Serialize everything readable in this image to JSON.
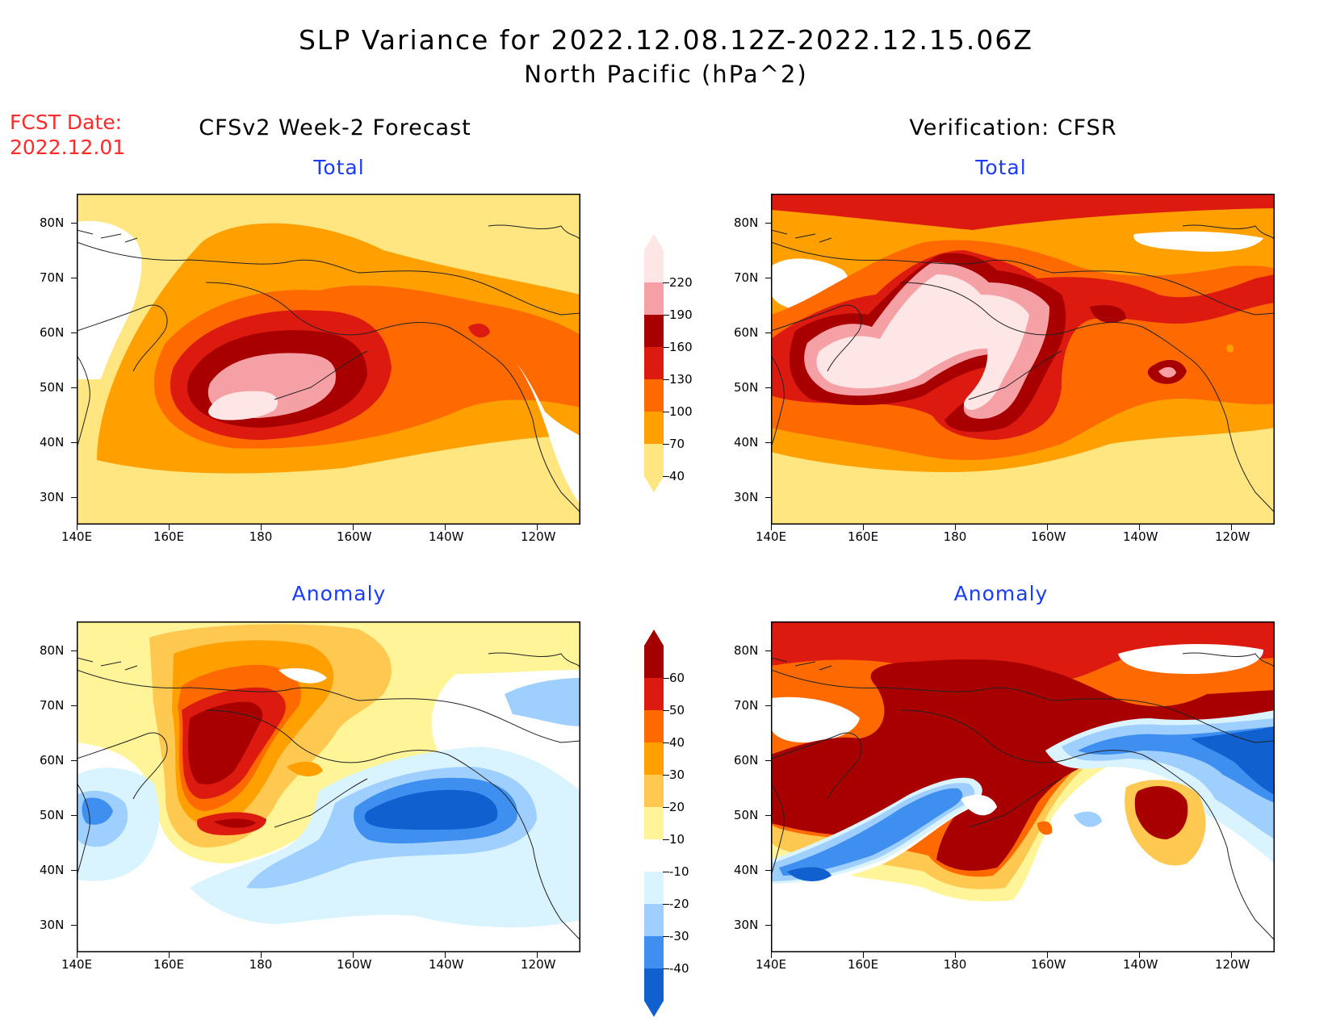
{
  "header": {
    "title_line1": "SLP Variance for 2022.12.08.12Z-2022.12.15.06Z",
    "title_line2": "North Pacific (hPa^2)"
  },
  "forecast_date": {
    "label": "FCST Date:",
    "value": "2022.12.01"
  },
  "columns": {
    "left": "CFSv2 Week-2 Forecast",
    "right": "Verification: CFSR"
  },
  "panels": {
    "top_left": "Total",
    "top_right": "Total",
    "bottom_left": "Anomaly",
    "bottom_right": "Anomaly"
  },
  "axes": {
    "lat_labels": [
      "80N",
      "70N",
      "60N",
      "50N",
      "40N",
      "30N"
    ],
    "lon_labels": [
      "140E",
      "160E",
      "180",
      "160W",
      "140W",
      "120W"
    ]
  },
  "colorbars": {
    "total": {
      "levels": [
        "220",
        "190",
        "160",
        "130",
        "100",
        "70",
        "40"
      ],
      "colors": [
        "#ffe6e6",
        "#f5a0a5",
        "#a80000",
        "#dd1a10",
        "#ff6a00",
        "#ffa000",
        "#ffe680"
      ]
    },
    "anomaly": {
      "levels": [
        "60",
        "50",
        "40",
        "30",
        "20",
        "10",
        "-10",
        "-20",
        "-30",
        "-40"
      ],
      "colors": [
        "#a50000",
        "#dd1a10",
        "#ff6a00",
        "#ffa000",
        "#ffc850",
        "#fff598",
        "#ffffff",
        "#d9f4ff",
        "#9fcfff",
        "#3f8ff0",
        "#1060d0"
      ]
    }
  },
  "colors": {
    "title": "#000000",
    "fcst_date": "#ff2a2a",
    "panel_title": "#1a3cff"
  }
}
